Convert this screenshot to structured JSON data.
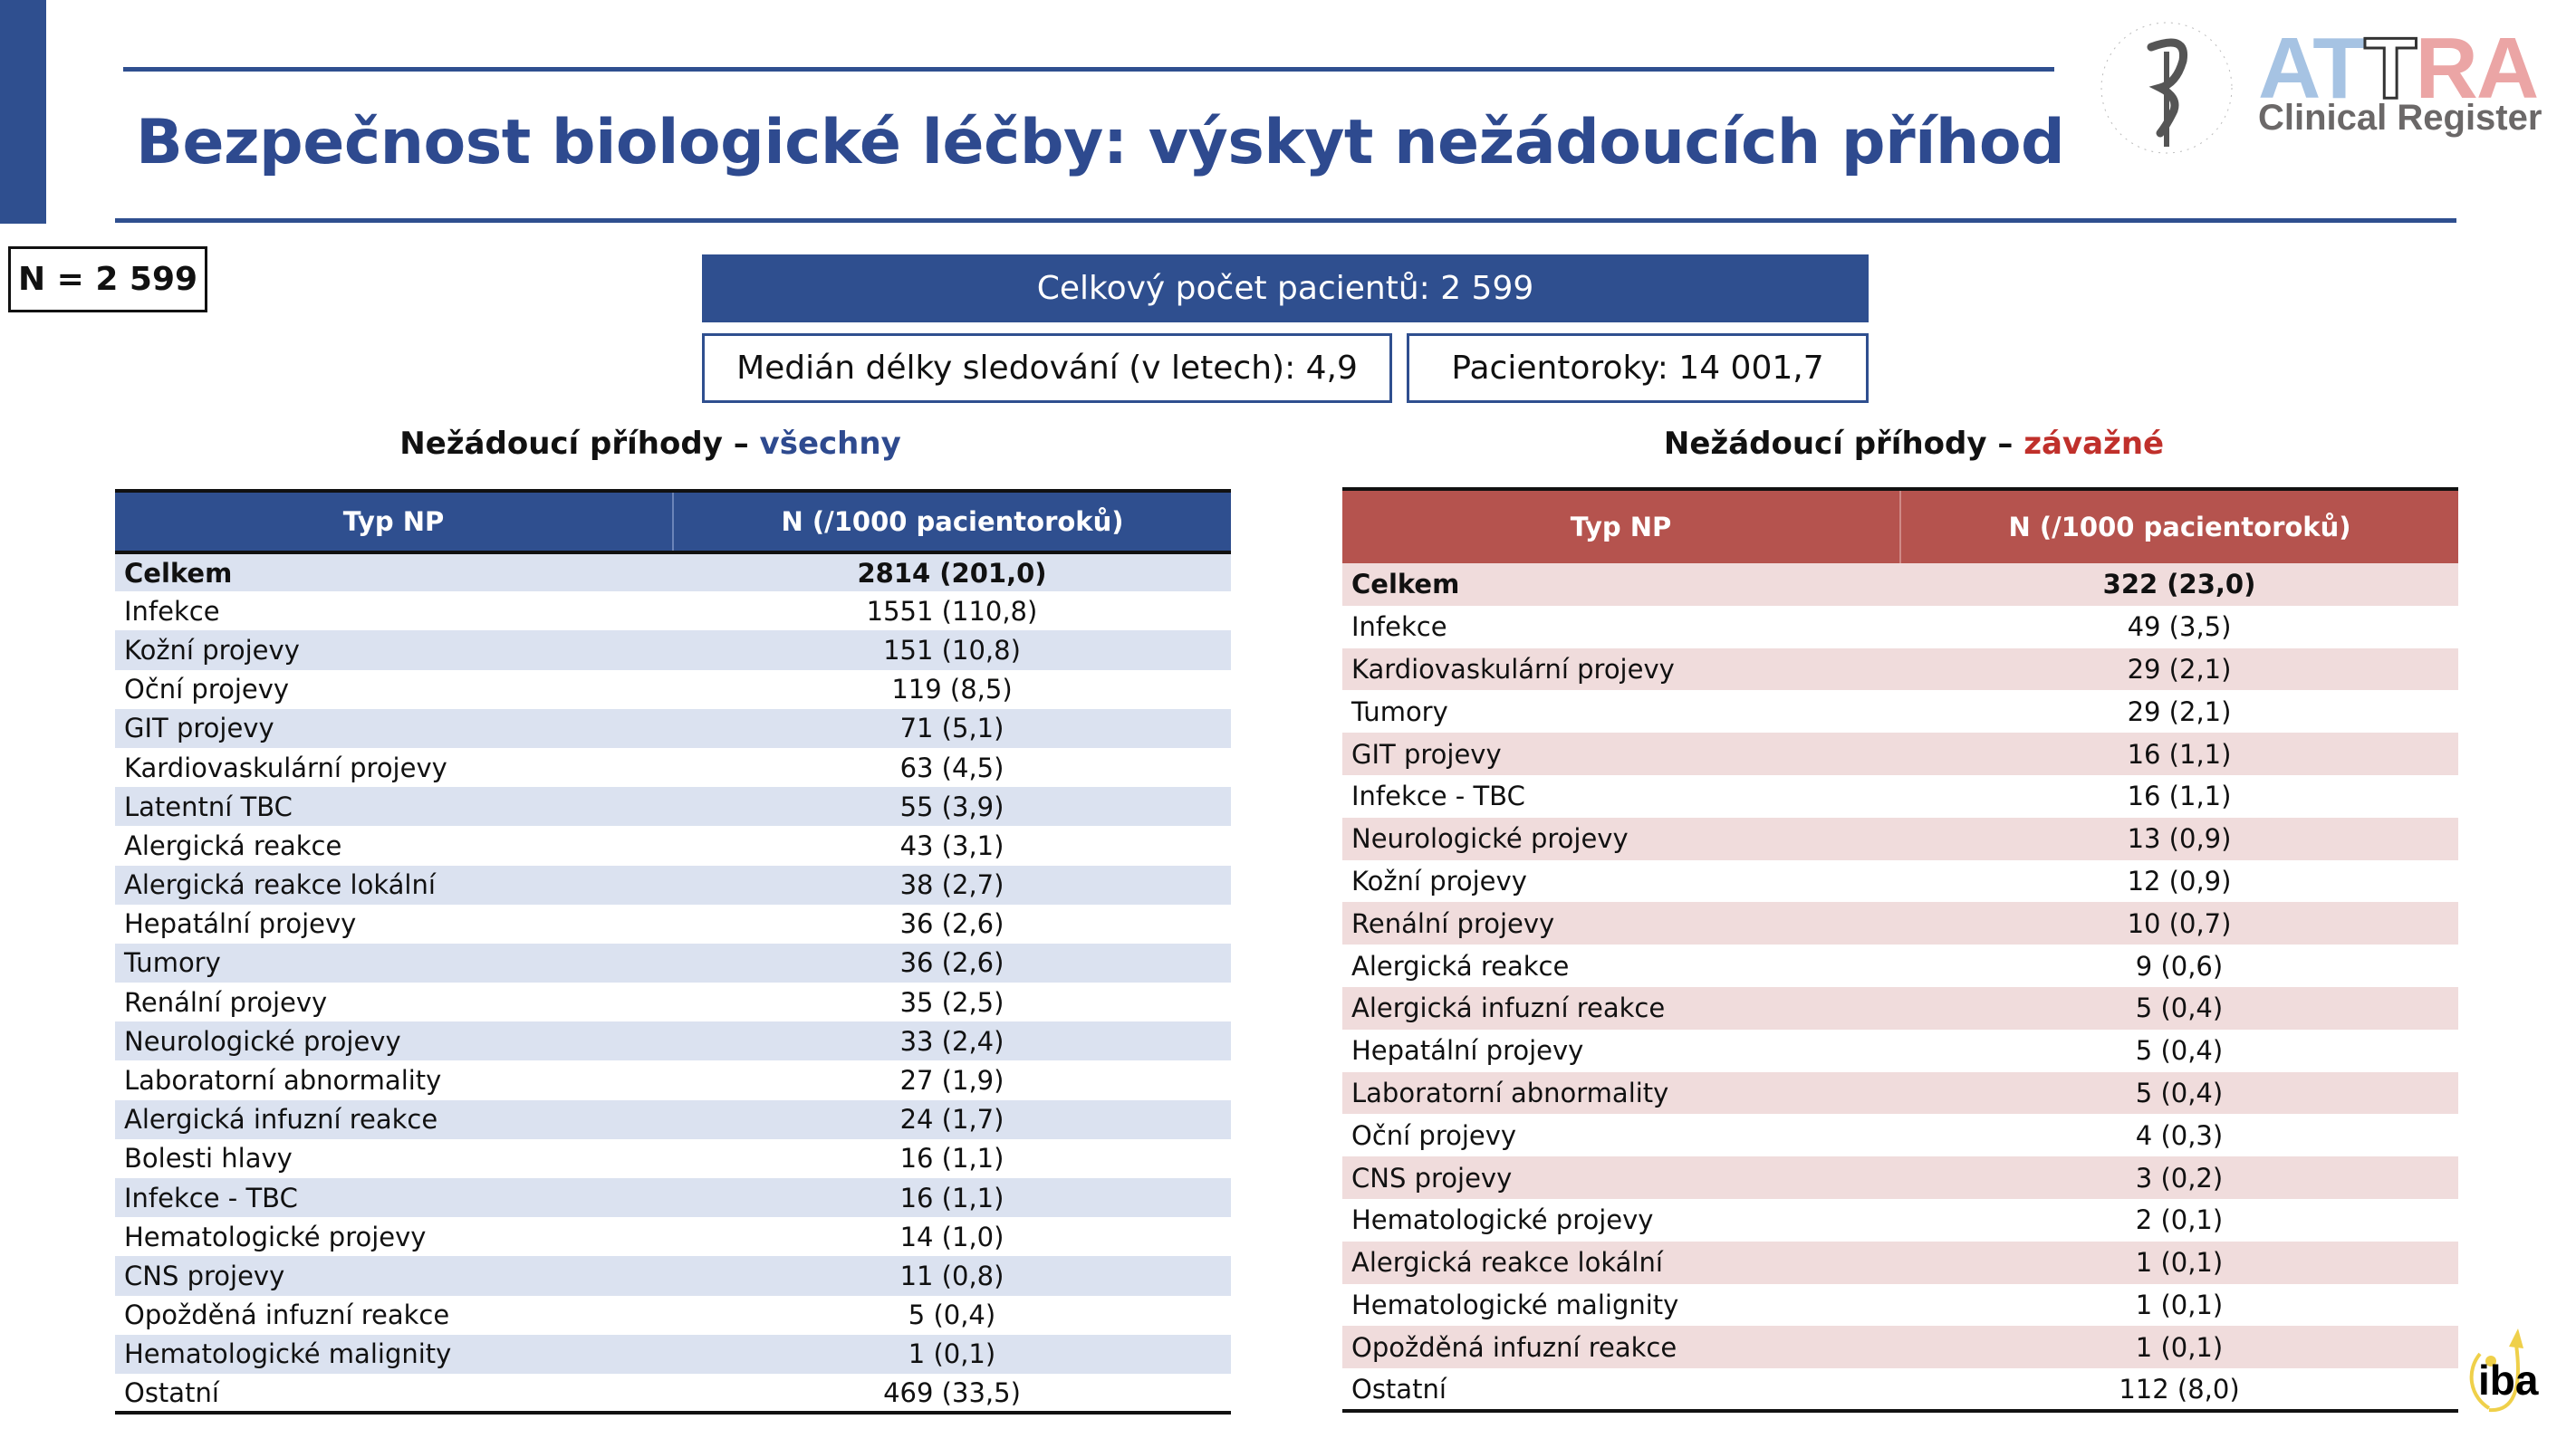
{
  "header": {
    "title": "Bezpečnost biologické léčby: výskyt nežádoucích příhod"
  },
  "logos": {
    "society": "Česká lékařská společnost J. E. Purkyně",
    "attra": [
      "AT",
      "T",
      "RA"
    ],
    "register": "Clinical Register",
    "iba": "iba"
  },
  "colors": {
    "primary": "#2f4f8f",
    "serious": "#b5534e",
    "serious_text": "#c0302b"
  },
  "summary": {
    "n": "N = 2 599",
    "total": "Celkový počet pacientů: 2 599",
    "median": "Medián délky sledování (v letech): 4,9",
    "patient_years": "Pacientoroky: 14 001,7"
  },
  "all": {
    "title_prefix": "Nežádoucí příhody – ",
    "title_suffix": "všechny",
    "headers": [
      "Typ NP",
      "N (/1000 pacientoroků)"
    ],
    "rows": [
      [
        "Celkem",
        "2814 (201,0)"
      ],
      [
        "Infekce",
        "1551 (110,8)"
      ],
      [
        "Kožní projevy",
        "151 (10,8)"
      ],
      [
        "Oční projevy",
        "119 (8,5)"
      ],
      [
        "GIT projevy",
        "71 (5,1)"
      ],
      [
        "Kardiovaskulární projevy",
        "63 (4,5)"
      ],
      [
        "Latentní TBC",
        "55 (3,9)"
      ],
      [
        "Alergická reakce",
        "43 (3,1)"
      ],
      [
        "Alergická reakce lokální",
        "38 (2,7)"
      ],
      [
        "Hepatální projevy",
        "36 (2,6)"
      ],
      [
        "Tumory",
        "36 (2,6)"
      ],
      [
        "Renální projevy",
        "35 (2,5)"
      ],
      [
        "Neurologické projevy",
        "33 (2,4)"
      ],
      [
        "Laboratorní abnormality",
        "27 (1,9)"
      ],
      [
        "Alergická infuzní reakce",
        "24 (1,7)"
      ],
      [
        "Bolesti hlavy",
        "16 (1,1)"
      ],
      [
        "Infekce - TBC",
        "16 (1,1)"
      ],
      [
        "Hematologické projevy",
        "14 (1,0)"
      ],
      [
        "CNS projevy",
        "11 (0,8)"
      ],
      [
        "Opožděná infuzní reakce",
        "5 (0,4)"
      ],
      [
        "Hematologické malignity",
        "1 (0,1)"
      ],
      [
        "Ostatní",
        "469 (33,5)"
      ]
    ]
  },
  "serious": {
    "title_prefix": "Nežádoucí příhody – ",
    "title_suffix": "závažné",
    "headers": [
      "Typ NP",
      "N (/1000 pacientoroků)"
    ],
    "rows": [
      [
        "Celkem",
        "322 (23,0)"
      ],
      [
        "Infekce",
        "49 (3,5)"
      ],
      [
        "Kardiovaskulární projevy",
        "29 (2,1)"
      ],
      [
        "Tumory",
        "29 (2,1)"
      ],
      [
        "GIT projevy",
        "16 (1,1)"
      ],
      [
        "Infekce - TBC",
        "16 (1,1)"
      ],
      [
        "Neurologické projevy",
        "13 (0,9)"
      ],
      [
        "Kožní projevy",
        "12 (0,9)"
      ],
      [
        "Renální projevy",
        "10 (0,7)"
      ],
      [
        "Alergická reakce",
        "9 (0,6)"
      ],
      [
        "Alergická infuzní reakce",
        "5 (0,4)"
      ],
      [
        "Hepatální projevy",
        "5 (0,4)"
      ],
      [
        "Laboratorní abnormality",
        "5 (0,4)"
      ],
      [
        "Oční projevy",
        "4 (0,3)"
      ],
      [
        "CNS projevy",
        "3 (0,2)"
      ],
      [
        "Hematologické projevy",
        "2 (0,1)"
      ],
      [
        "Alergická reakce lokální",
        "1 (0,1)"
      ],
      [
        "Hematologické malignity",
        "1 (0,1)"
      ],
      [
        "Opožděná infuzní reakce",
        "1 (0,1)"
      ],
      [
        "Ostatní",
        "112 (8,0)"
      ]
    ]
  }
}
